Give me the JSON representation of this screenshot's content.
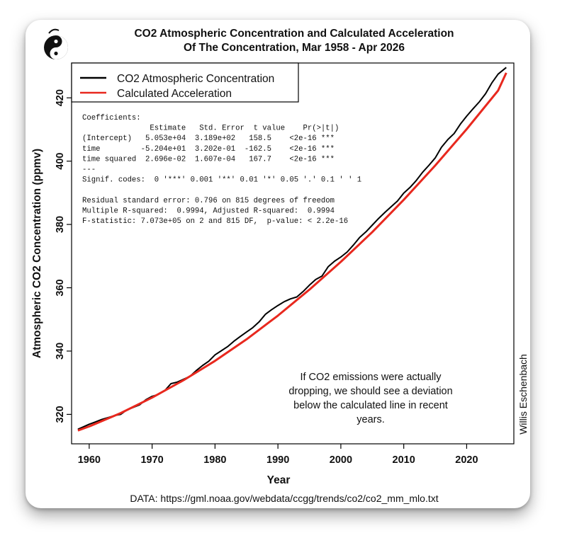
{
  "chart_data": {
    "type": "line",
    "title": "CO2 Atmospheric Concentration and Calculated Acceleration",
    "subtitle": "Of The Concentration, Mar 1958 - Apr 2026",
    "xlabel": "Year",
    "ylabel": "Atmospheric CO2 Concentration (ppmv)",
    "xlim": [
      1957.2,
      2027.5
    ],
    "ylim": [
      310.7,
      431.0
    ],
    "x_ticks": [
      1960,
      1970,
      1980,
      1990,
      2000,
      2010,
      2020
    ],
    "y_ticks": [
      320,
      340,
      360,
      380,
      400,
      420
    ],
    "legend_position": "top-left",
    "series": [
      {
        "name": "CO2 Atmospheric Concentration",
        "color": "#000000",
        "x": [
          1958.2,
          1959,
          1960,
          1961,
          1962,
          1963,
          1964,
          1965,
          1966,
          1967,
          1968,
          1969,
          1970,
          1971,
          1972,
          1973,
          1974,
          1975,
          1976,
          1977,
          1978,
          1979,
          1980,
          1981,
          1982,
          1983,
          1984,
          1985,
          1986,
          1987,
          1988,
          1989,
          1990,
          1991,
          1992,
          1993,
          1994,
          1995,
          1996,
          1997,
          1998,
          1999,
          2000,
          2001,
          2002,
          2003,
          2004,
          2005,
          2006,
          2007,
          2008,
          2009,
          2010,
          2011,
          2012,
          2013,
          2014,
          2015,
          2016,
          2017,
          2018,
          2019,
          2020,
          2021,
          2022,
          2023,
          2024,
          2025,
          2026.3
        ],
        "y": [
          315.3,
          316.0,
          316.9,
          317.6,
          318.4,
          319.0,
          319.6,
          320.0,
          321.4,
          322.2,
          323.0,
          324.6,
          325.7,
          326.3,
          327.5,
          329.7,
          330.2,
          331.1,
          332.0,
          333.8,
          335.4,
          336.8,
          338.8,
          340.1,
          341.4,
          343.1,
          344.6,
          346.0,
          347.4,
          349.2,
          351.6,
          353.1,
          354.4,
          355.6,
          356.5,
          357.1,
          358.8,
          360.8,
          362.6,
          363.7,
          366.7,
          368.4,
          369.7,
          371.3,
          373.5,
          375.9,
          377.7,
          379.8,
          381.9,
          383.8,
          385.6,
          387.4,
          389.9,
          391.7,
          393.9,
          396.5,
          398.7,
          401.0,
          404.4,
          406.8,
          408.7,
          411.7,
          414.2,
          416.5,
          418.7,
          421.3,
          424.7,
          427.5,
          429.6
        ]
      },
      {
        "name": "Calculated Acceleration",
        "color": "#e8281e",
        "x": [
          1958.2,
          1960,
          1965,
          1970,
          1975,
          1980,
          1985,
          1990,
          1995,
          2000,
          2005,
          2010,
          2015,
          2020,
          2025,
          2026.3
        ],
        "y": [
          314.9,
          316.2,
          320.4,
          325.3,
          330.8,
          336.9,
          343.7,
          351.2,
          359.4,
          368.2,
          377.6,
          387.8,
          398.6,
          410.1,
          422.3,
          427.9
        ]
      }
    ],
    "annotation_text": [
      "If CO2 emissions were actually",
      "dropping, we should see a deviation",
      "below the calculated line in recent",
      "years."
    ],
    "regression_box": [
      "Coefficients:",
      "               Estimate   Std. Error  t value    Pr(>|t|)",
      "(Intercept)   5.053e+04  3.189e+02   158.5    <2e-16 ***",
      "time         -5.204e+01  3.202e-01  -162.5    <2e-16 ***",
      "time squared  2.696e-02  1.607e-04   167.7    <2e-16 ***",
      "---",
      "Signif. codes:  0 '***' 0.001 '**' 0.01 '*' 0.05 '.' 0.1 ' ' 1",
      "",
      "Residual standard error: 0.796 on 815 degrees of freedom",
      "Multiple R-squared:  0.9994, Adjusted R-squared:  0.9994",
      "F-statistic: 7.073e+05 on 2 and 815 DF,  p-value: < 2.2e-16"
    ],
    "author": "Willis Eschenbach",
    "source": "DATA: https://gml.noaa.gov/webdata/ccgg/trends/co2/co2_mm_mlo.txt"
  }
}
